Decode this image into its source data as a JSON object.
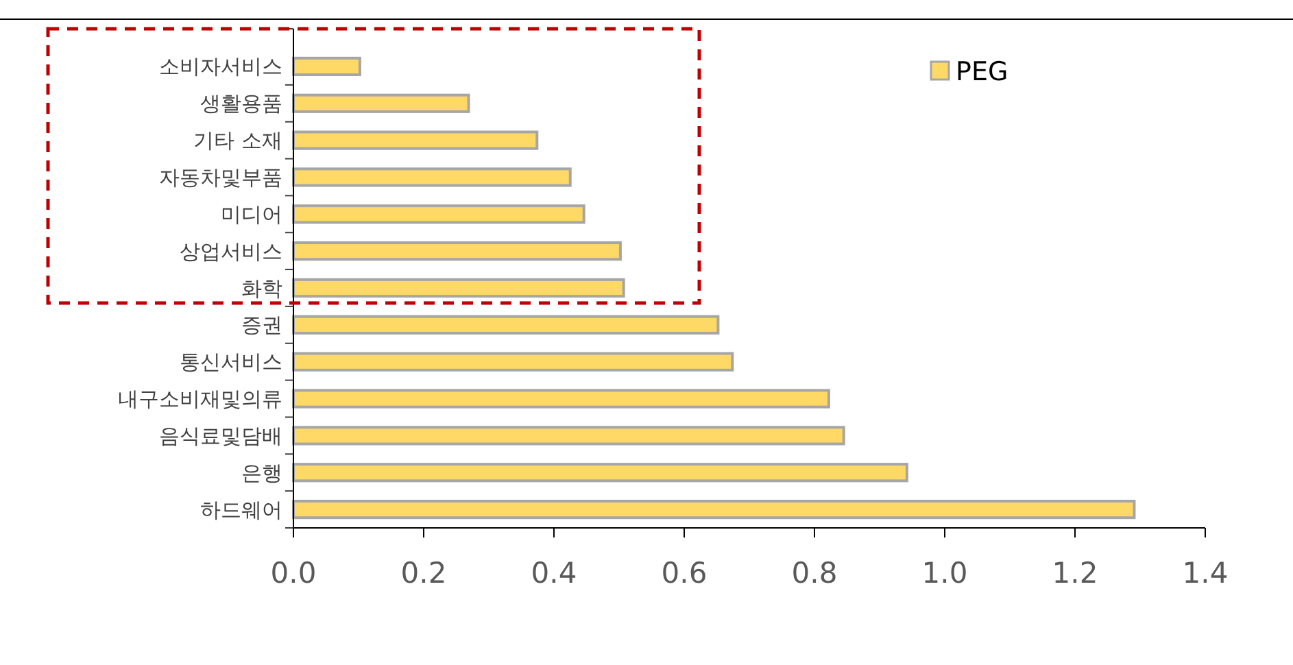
{
  "chart_data": {
    "type": "bar",
    "orientation": "horizontal",
    "categories": [
      "소비자서비스",
      "생활용품",
      "기타 소재",
      "자동차및부품",
      "미디어",
      "상업서비스",
      "화학",
      "증권",
      "통신서비스",
      "내구소비재및의류",
      "음식료및담배",
      "은행",
      "하드웨어"
    ],
    "series": [
      {
        "name": "PEG",
        "color": "#ffd966",
        "values": [
          0.102,
          0.269,
          0.374,
          0.425,
          0.446,
          0.502,
          0.507,
          0.652,
          0.674,
          0.822,
          0.845,
          0.942,
          1.291
        ]
      }
    ],
    "xlim": [
      0,
      1.4
    ],
    "xticks": [
      {
        "value": 0,
        "label": "0.0"
      },
      {
        "value": 0.2,
        "label": "0.2"
      },
      {
        "value": 0.4,
        "label": "0.4"
      },
      {
        "value": 0.6,
        "label": "0.6"
      },
      {
        "value": 0.8,
        "label": "0.8"
      },
      {
        "value": 1,
        "label": "1.0"
      },
      {
        "value": 1.2,
        "label": "1.2"
      },
      {
        "value": 1.4,
        "label": "1.4"
      }
    ],
    "grid": false,
    "legend": "top right"
  }
}
